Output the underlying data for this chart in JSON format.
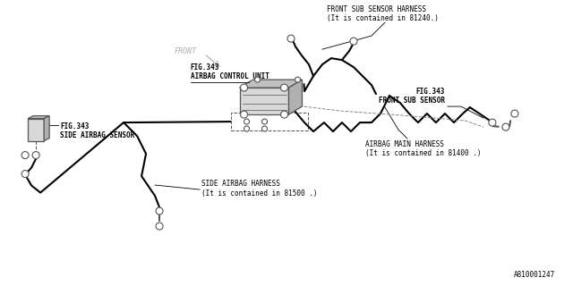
{
  "bg_color": "#ffffff",
  "line_color": "#000000",
  "text_color": "#000000",
  "gray_text": "#b0b0b0",
  "part_no": "A810001247",
  "lw": 1.5,
  "font_size": 5.5,
  "labels": {
    "fig343_airbag_control": "FIG.343\nAIRBAG CONTROL UNIT",
    "fig343_side_sensor": "FIG.343\nSIDE AIRBAG SENSOR",
    "fig343_front_sub": "FIG.343\nFRONT SUB SENSOR",
    "front_sub_harness": "FRONT SUB SENSOR HARNESS\n(It is contained in 81240.)",
    "airbag_main_harness": "AIRBAG MAIN HARNESS\n(It is contained in 81400 .)",
    "side_airbag_harness": "SIDE AIRBAG HARNESS\n(It is contained in 81500 .)",
    "front_label": "FRONT"
  }
}
